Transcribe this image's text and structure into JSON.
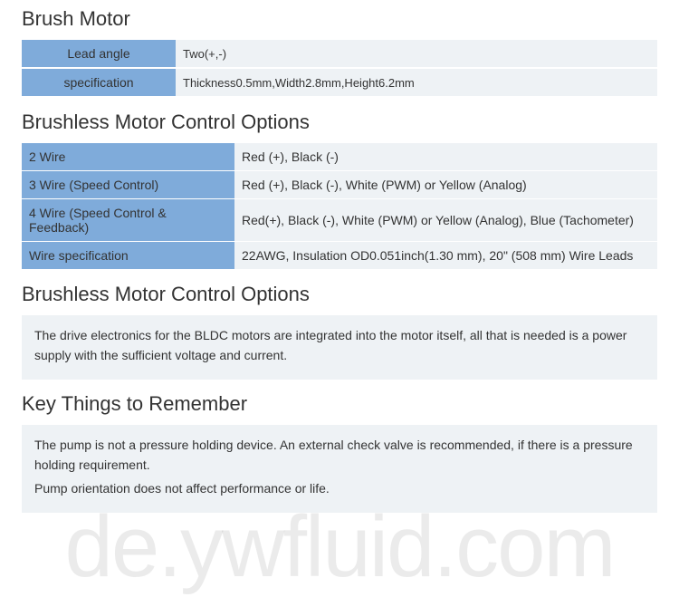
{
  "sections": {
    "brush_motor": {
      "title": "Brush Motor",
      "table": {
        "label_bg": "#7fabda",
        "value_bg": "#eef2f5",
        "rows": [
          {
            "label": "Lead angle",
            "value": "Two(+,-)"
          },
          {
            "label": "specification",
            "value": "Thickness0.5mm,Width2.8mm,Height6.2mm"
          }
        ]
      }
    },
    "brushless_table": {
      "title": "Brushless Motor Control Options",
      "table": {
        "label_bg": "#7fabda",
        "value_bg": "#eef2f5",
        "rows": [
          {
            "label": "2 Wire",
            "value": "Red (+), Black (-)"
          },
          {
            "label": "3 Wire (Speed Control)",
            "value": "Red (+), Black (-), White (PWM) or Yellow (Analog)"
          },
          {
            "label": "4 Wire (Speed Control & Feedback)",
            "value": "Red(+), Black (-), White (PWM) or Yellow (Analog), Blue (Tachometer)"
          },
          {
            "label": "Wire specification",
            "value": "22AWG, Insulation OD0.051inch(1.30 mm), 20\" (508 mm) Wire Leads"
          }
        ]
      }
    },
    "brushless_info": {
      "title": "Brushless Motor Control Options",
      "paragraphs": [
        "The drive electronics for the BLDC motors are integrated into the motor itself, all that is needed is a power supply with the sufficient voltage and current."
      ]
    },
    "key_things": {
      "title": "Key Things to Remember",
      "paragraphs": [
        "The pump is not a pressure holding device. An external check valve is recommended, if there is a pressure holding requirement.",
        "Pump orientation does not affect performance or life."
      ]
    }
  },
  "watermark": "de.ywfluid.com",
  "colors": {
    "header_blue": "#7fabda",
    "light_gray": "#eef2f5",
    "text": "#333333",
    "background": "#ffffff"
  },
  "typography": {
    "title_fontsize": 22,
    "title_weight": 300,
    "body_fontsize": 14
  }
}
